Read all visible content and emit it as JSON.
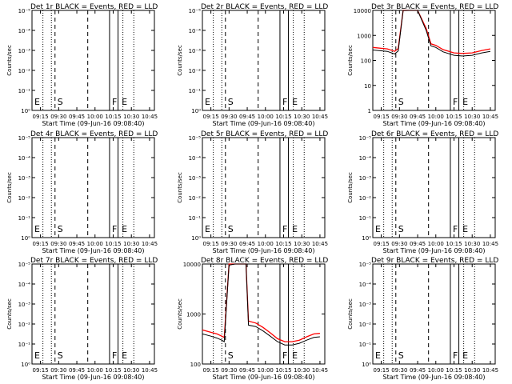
{
  "chart_data": {
    "type": "line",
    "layout": "3x3",
    "xlabel": "Start Time (09-Jun-16 09:08:40)",
    "ylabel": "Counts/sec",
    "x_ticks": [
      "09:15",
      "09:30",
      "09:45",
      "10:00",
      "10:15",
      "10:30",
      "10:45"
    ],
    "y_log_scale": true,
    "series_colors": {
      "events": "#000000",
      "lld": "#ff0000"
    },
    "panels": [
      {
        "title": "Det 1r BLACK = Events, RED = LLD",
        "y_ticks": [
          "10⁰",
          "10⁻¹",
          "10⁻²",
          "10⁻³",
          "10⁻⁴",
          "10⁻⁵"
        ],
        "has_data": false,
        "letters": [
          "E",
          "S",
          "F",
          "E"
        ]
      },
      {
        "title": "Det 2r BLACK = Events, RED = LLD",
        "y_ticks": [
          "10⁰",
          "10⁻¹",
          "10⁻²",
          "10⁻³",
          "10⁻⁴",
          "10⁻⁵"
        ],
        "has_data": false,
        "letters": [
          "E",
          "S",
          "F",
          "E"
        ]
      },
      {
        "title": "Det 3r BLACK = Events, RED = LLD",
        "y_ticks": [
          "1",
          "10",
          "100",
          "1000",
          "10000"
        ],
        "has_data": true,
        "letters": [
          "S",
          "F",
          "E"
        ],
        "series": [
          {
            "name": "Events",
            "x": [
              "09:08",
              "09:20",
              "09:26",
              "09:29",
              "09:33",
              "09:38",
              "09:45",
              "09:52",
              "09:56",
              "10:00",
              "10:06",
              "10:15",
              "10:22",
              "10:30",
              "10:38",
              "10:45"
            ],
            "values": [
              260,
              230,
              180,
              240,
              9800,
              10000,
              10000,
              1600,
              380,
              330,
              220,
              160,
              150,
              160,
              200,
              230
            ]
          },
          {
            "name": "LLD",
            "x": [
              "09:08",
              "09:20",
              "09:26",
              "09:29",
              "09:33",
              "09:38",
              "09:45",
              "09:52",
              "09:56",
              "10:00",
              "10:06",
              "10:15",
              "10:22",
              "10:30",
              "10:38",
              "10:45"
            ],
            "values": [
              330,
              290,
              230,
              300,
              10000,
              10000,
              10000,
              1900,
              460,
              400,
              270,
              200,
              190,
              200,
              250,
              290
            ]
          }
        ]
      },
      {
        "title": "Det 4r BLACK = Events, RED = LLD",
        "y_ticks": [
          "10⁰",
          "10⁻¹",
          "10⁻²",
          "10⁻³",
          "10⁻⁴",
          "10⁻⁵"
        ],
        "has_data": false,
        "letters": [
          "E",
          "S",
          "F",
          "E"
        ]
      },
      {
        "title": "Det 5r BLACK = Events, RED = LLD",
        "y_ticks": [
          "10⁰",
          "10⁻¹",
          "10⁻²",
          "10⁻³",
          "10⁻⁴",
          "10⁻⁵"
        ],
        "has_data": false,
        "letters": [
          "E",
          "S",
          "F",
          "E"
        ]
      },
      {
        "title": "Det 6r BLACK = Events, RED = LLD",
        "y_ticks": [
          "10⁰",
          "10⁻¹",
          "10⁻²",
          "10⁻³",
          "10⁻⁴",
          "10⁻⁵"
        ],
        "has_data": false,
        "letters": [
          "E",
          "S",
          "F",
          "E"
        ]
      },
      {
        "title": "Det 7r BLACK = Events, RED = LLD",
        "y_ticks": [
          "10⁰",
          "10⁻¹",
          "10⁻²",
          "10⁻³",
          "10⁻⁴",
          "10⁻⁵"
        ],
        "has_data": false,
        "letters": [
          "E",
          "S",
          "F",
          "E"
        ]
      },
      {
        "title": "Det 8r BLACK = Events, RED = LLD",
        "y_ticks": [
          "100",
          "1000",
          "10000"
        ],
        "has_data": true,
        "letters": [
          "S",
          "F",
          "E"
        ],
        "series": [
          {
            "name": "Events",
            "x": [
              "09:08",
              "09:15",
              "09:20",
              "09:24",
              "09:26",
              "09:30",
              "09:35",
              "09:40",
              "09:44",
              "09:46",
              "09:52",
              "09:58",
              "10:04",
              "10:10",
              "10:16",
              "10:22",
              "10:28",
              "10:34",
              "10:40",
              "10:45"
            ],
            "values": [
              400,
              360,
              330,
              300,
              280,
              9500,
              10000,
              10000,
              10000,
              600,
              560,
              460,
              360,
              280,
              240,
              240,
              260,
              300,
              340,
              350
            ]
          },
          {
            "name": "LLD",
            "x": [
              "09:08",
              "09:15",
              "09:20",
              "09:24",
              "09:26",
              "09:30",
              "09:35",
              "09:40",
              "09:44",
              "09:46",
              "09:52",
              "09:58",
              "10:04",
              "10:10",
              "10:16",
              "10:22",
              "10:28",
              "10:34",
              "10:40",
              "10:45"
            ],
            "values": [
              480,
              430,
              400,
              360,
              340,
              10000,
              10000,
              10000,
              10000,
              720,
              660,
              540,
              420,
              320,
              280,
              280,
              300,
              350,
              400,
              410
            ]
          }
        ]
      },
      {
        "title": "Det 9r BLACK = Events, RED = LLD",
        "y_ticks": [
          "10⁰",
          "10⁻¹",
          "10⁻²",
          "10⁻³",
          "10⁻⁴",
          "10⁻⁵"
        ],
        "has_data": false,
        "letters": [
          "E",
          "S",
          "F",
          "E"
        ]
      }
    ]
  }
}
